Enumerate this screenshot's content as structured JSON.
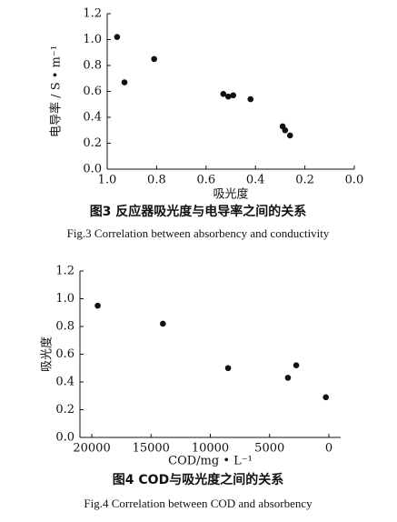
{
  "chart_data": [
    {
      "type": "scatter",
      "title": "图3   反应器吸光度与电导率之间的关系",
      "subtitle": "Fig.3    Correlation between absorbency and conductivity",
      "x_label": "吸光度",
      "y_label": "电导率 / S • m⁻¹",
      "color": "#111111",
      "x": [
        0.96,
        0.93,
        0.81,
        0.53,
        0.51,
        0.49,
        0.42,
        0.29,
        0.28,
        0.26
      ],
      "values": [
        1.02,
        0.67,
        0.85,
        0.58,
        0.56,
        0.57,
        0.54,
        0.33,
        0.3,
        0.26
      ],
      "xlim": [
        1.0,
        0.0
      ],
      "xticks": [
        {
          "value": 1.0,
          "label": "1.0"
        },
        0.8,
        0.6,
        0.4,
        0.2,
        {
          "value": 0.0,
          "label": "0.0"
        }
      ],
      "ylim": [
        0.0,
        1.2
      ],
      "yticks": [
        {
          "value": 0.0,
          "label": "0.0"
        },
        0.2,
        0.4,
        0.6,
        0.8,
        {
          "value": 1.0,
          "label": "1.0"
        },
        1.2
      ]
    },
    {
      "type": "scatter",
      "title": "图4   COD与吸光度之间的关系",
      "subtitle": "Fig.4    Correlation between COD and absorbency",
      "x_label": "COD/mg • L⁻¹",
      "y_label": "吸光度",
      "color": "#111111",
      "x": [
        19500,
        14000,
        8500,
        3450,
        2750,
        250
      ],
      "values": [
        0.95,
        0.82,
        0.5,
        0.43,
        0.52,
        0.29
      ],
      "xlim": [
        21000,
        -1000
      ],
      "xticks": [
        20000,
        15000,
        10000,
        5000,
        0
      ],
      "ylim": [
        0.0,
        1.2
      ],
      "yticks": [
        {
          "value": 0.0,
          "label": "0.0"
        },
        0.2,
        0.4,
        0.6,
        0.8,
        {
          "value": 1.0,
          "label": "1.0"
        },
        1.2
      ]
    }
  ]
}
